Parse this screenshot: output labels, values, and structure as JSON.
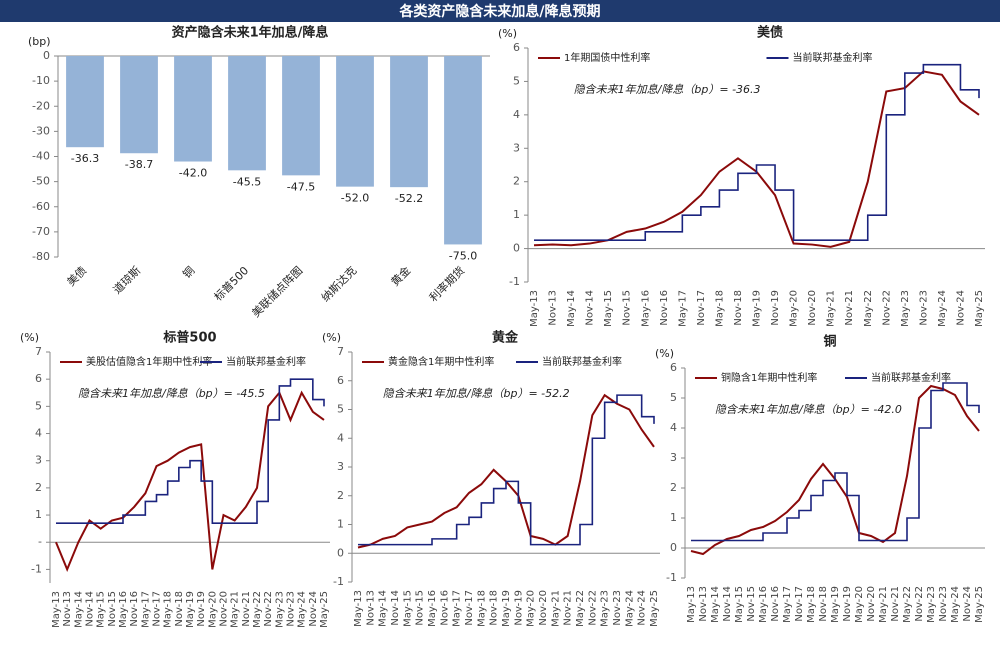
{
  "header": {
    "title": "各类资产隐含未来加息/降息预期"
  },
  "chart_data": [
    {
      "type": "bar",
      "title": "资产隐含未来1年加息/降息",
      "y_label": "(bp)",
      "categories": [
        "美债",
        "道琼斯",
        "铜",
        "标普500",
        "美联储点阵图",
        "纳斯达克",
        "黄金",
        "利率期货"
      ],
      "values": [
        -36.3,
        -38.7,
        -42.0,
        -45.5,
        -47.5,
        -52.0,
        -52.2,
        -75.0
      ],
      "value_labels": [
        "-36.3",
        "-38.7",
        "-42.0",
        "-45.5",
        "-47.5",
        "-52.0",
        "-52.2",
        "-75.0"
      ],
      "color": "#95b3d7",
      "ylim": [
        -80,
        0
      ],
      "yticks": [
        0,
        -10,
        -20,
        -30,
        -40,
        -50,
        -60,
        -70,
        -80
      ]
    },
    {
      "type": "line",
      "title": "美债",
      "y_label": "(%)",
      "annotation": "隐含未来1年加息/降息（bp）= -36.3",
      "legend": "top",
      "categories": [
        "May-13",
        "Nov-13",
        "May-14",
        "Nov-14",
        "May-15",
        "Nov-15",
        "May-16",
        "Nov-16",
        "May-17",
        "Nov-17",
        "May-18",
        "Nov-18",
        "May-19",
        "Nov-19",
        "May-20",
        "Nov-20",
        "May-21",
        "Nov-21",
        "May-22",
        "Nov-22",
        "May-23",
        "Nov-23",
        "May-24",
        "Nov-24",
        "May-25"
      ],
      "ylim": [
        -1,
        6
      ],
      "yticks": [
        -1,
        0,
        1,
        2,
        3,
        4,
        5,
        6
      ],
      "series": [
        {
          "name": "1年期国债中性利率",
          "color": "#8b0a0a",
          "values": [
            0.1,
            0.12,
            0.1,
            0.15,
            0.25,
            0.5,
            0.6,
            0.8,
            1.1,
            1.6,
            2.3,
            2.7,
            2.3,
            1.6,
            0.15,
            0.12,
            0.05,
            0.2,
            2.0,
            4.7,
            4.8,
            5.3,
            5.2,
            4.4,
            4.0
          ]
        },
        {
          "name": "当前联邦基金利率",
          "color": "#1a237e",
          "step": true,
          "values": [
            0.25,
            0.25,
            0.25,
            0.25,
            0.25,
            0.25,
            0.5,
            0.5,
            1.0,
            1.25,
            1.75,
            2.25,
            2.5,
            1.75,
            0.25,
            0.25,
            0.25,
            0.25,
            1.0,
            4.0,
            5.25,
            5.5,
            5.5,
            4.75,
            4.5
          ]
        }
      ]
    },
    {
      "type": "line",
      "title": "标普500",
      "y_label": "(%)",
      "annotation": "隐含未来1年加息/降息（bp）= -45.5",
      "legend": "top",
      "categories": [
        "May-13",
        "Nov-13",
        "May-14",
        "Nov-14",
        "May-15",
        "Nov-15",
        "May-16",
        "Nov-16",
        "May-17",
        "Nov-17",
        "May-18",
        "Nov-18",
        "May-19",
        "Nov-19",
        "May-20",
        "Nov-20",
        "May-21",
        "Nov-21",
        "May-22",
        "Nov-22",
        "May-23",
        "Nov-23",
        "May-24",
        "Nov-24",
        "May-25"
      ],
      "ylim": [
        -1.5,
        7
      ],
      "yticks": [
        -1,
        {
          "value": 0,
          "label": "-"
        },
        1,
        2,
        3,
        4,
        5,
        6,
        7
      ],
      "series": [
        {
          "name": "美股估值隐含1年期中性利率",
          "color": "#8b0a0a",
          "values": [
            0,
            -1.0,
            0.0,
            0.8,
            0.5,
            0.8,
            0.9,
            1.3,
            1.8,
            2.8,
            3.0,
            3.3,
            3.5,
            3.6,
            -1.0,
            1.0,
            0.8,
            1.3,
            2.0,
            5.0,
            5.5,
            4.5,
            5.5,
            4.8,
            4.5
          ]
        },
        {
          "name": "当前联邦基金利率",
          "color": "#1a237e",
          "step": true,
          "values": [
            0.7,
            0.7,
            0.7,
            0.7,
            0.7,
            0.7,
            1.0,
            1.0,
            1.5,
            1.75,
            2.25,
            2.75,
            3.0,
            2.25,
            0.7,
            0.7,
            0.7,
            0.7,
            1.5,
            4.5,
            5.75,
            6.0,
            6.0,
            5.25,
            5.0
          ]
        }
      ]
    },
    {
      "type": "line",
      "title": "黄金",
      "y_label": "(%)",
      "annotation": "隐含未来1年加息/降息（bp）= -52.2",
      "legend": "top",
      "categories": [
        "May-13",
        "Nov-13",
        "May-14",
        "Nov-14",
        "May-15",
        "Nov-15",
        "May-16",
        "Nov-16",
        "May-17",
        "Nov-17",
        "May-18",
        "Nov-18",
        "May-19",
        "Nov-19",
        "May-20",
        "Nov-20",
        "May-21",
        "Nov-21",
        "May-22",
        "Nov-22",
        "May-23",
        "Nov-23",
        "May-24",
        "Nov-24",
        "May-25"
      ],
      "ylim": [
        -1,
        7
      ],
      "yticks": [
        -1,
        0,
        1,
        2,
        3,
        4,
        5,
        6,
        7
      ],
      "series": [
        {
          "name": "黄金隐含1年期中性利率",
          "color": "#8b0a0a",
          "values": [
            0.2,
            0.3,
            0.5,
            0.6,
            0.9,
            1.0,
            1.1,
            1.4,
            1.6,
            2.1,
            2.4,
            2.9,
            2.5,
            2.0,
            0.6,
            0.5,
            0.3,
            0.6,
            2.5,
            4.8,
            5.5,
            5.2,
            5.0,
            4.3,
            3.7
          ]
        },
        {
          "name": "当前联邦基金利率",
          "color": "#1a237e",
          "step": true,
          "values": [
            0.3,
            0.3,
            0.3,
            0.3,
            0.3,
            0.3,
            0.5,
            0.5,
            1.0,
            1.25,
            1.75,
            2.25,
            2.5,
            1.75,
            0.3,
            0.3,
            0.3,
            0.3,
            1.0,
            4.0,
            5.25,
            5.5,
            5.5,
            4.75,
            4.5
          ]
        }
      ]
    },
    {
      "type": "line",
      "title": "铜",
      "y_label": "(%)",
      "annotation": "隐含未来1年加息/降息（bp）= -42.0",
      "legend": "top",
      "categories": [
        "May-13",
        "Nov-13",
        "May-14",
        "Nov-14",
        "May-15",
        "Nov-15",
        "May-16",
        "Nov-16",
        "May-17",
        "Nov-17",
        "May-18",
        "Nov-18",
        "May-19",
        "Nov-19",
        "May-20",
        "Nov-20",
        "May-21",
        "Nov-21",
        "May-22",
        "Nov-22",
        "May-23",
        "Nov-23",
        "May-24",
        "Nov-24",
        "May-25"
      ],
      "ylim": [
        -1,
        6
      ],
      "yticks": [
        -1,
        0,
        1,
        2,
        3,
        4,
        5,
        6
      ],
      "series": [
        {
          "name": "铜隐含1年期中性利率",
          "color": "#8b0a0a",
          "values": [
            -0.1,
            -0.2,
            0.1,
            0.3,
            0.4,
            0.6,
            0.7,
            0.9,
            1.2,
            1.6,
            2.3,
            2.8,
            2.3,
            1.7,
            0.5,
            0.4,
            0.2,
            0.5,
            2.4,
            5.0,
            5.4,
            5.3,
            5.1,
            4.4,
            3.9
          ]
        },
        {
          "name": "当前联邦基金利率",
          "color": "#1a237e",
          "step": true,
          "values": [
            0.25,
            0.25,
            0.25,
            0.25,
            0.25,
            0.25,
            0.5,
            0.5,
            1.0,
            1.25,
            1.75,
            2.25,
            2.5,
            1.75,
            0.25,
            0.25,
            0.25,
            0.25,
            1.0,
            4.0,
            5.25,
            5.5,
            5.5,
            4.75,
            4.5
          ]
        }
      ]
    }
  ]
}
